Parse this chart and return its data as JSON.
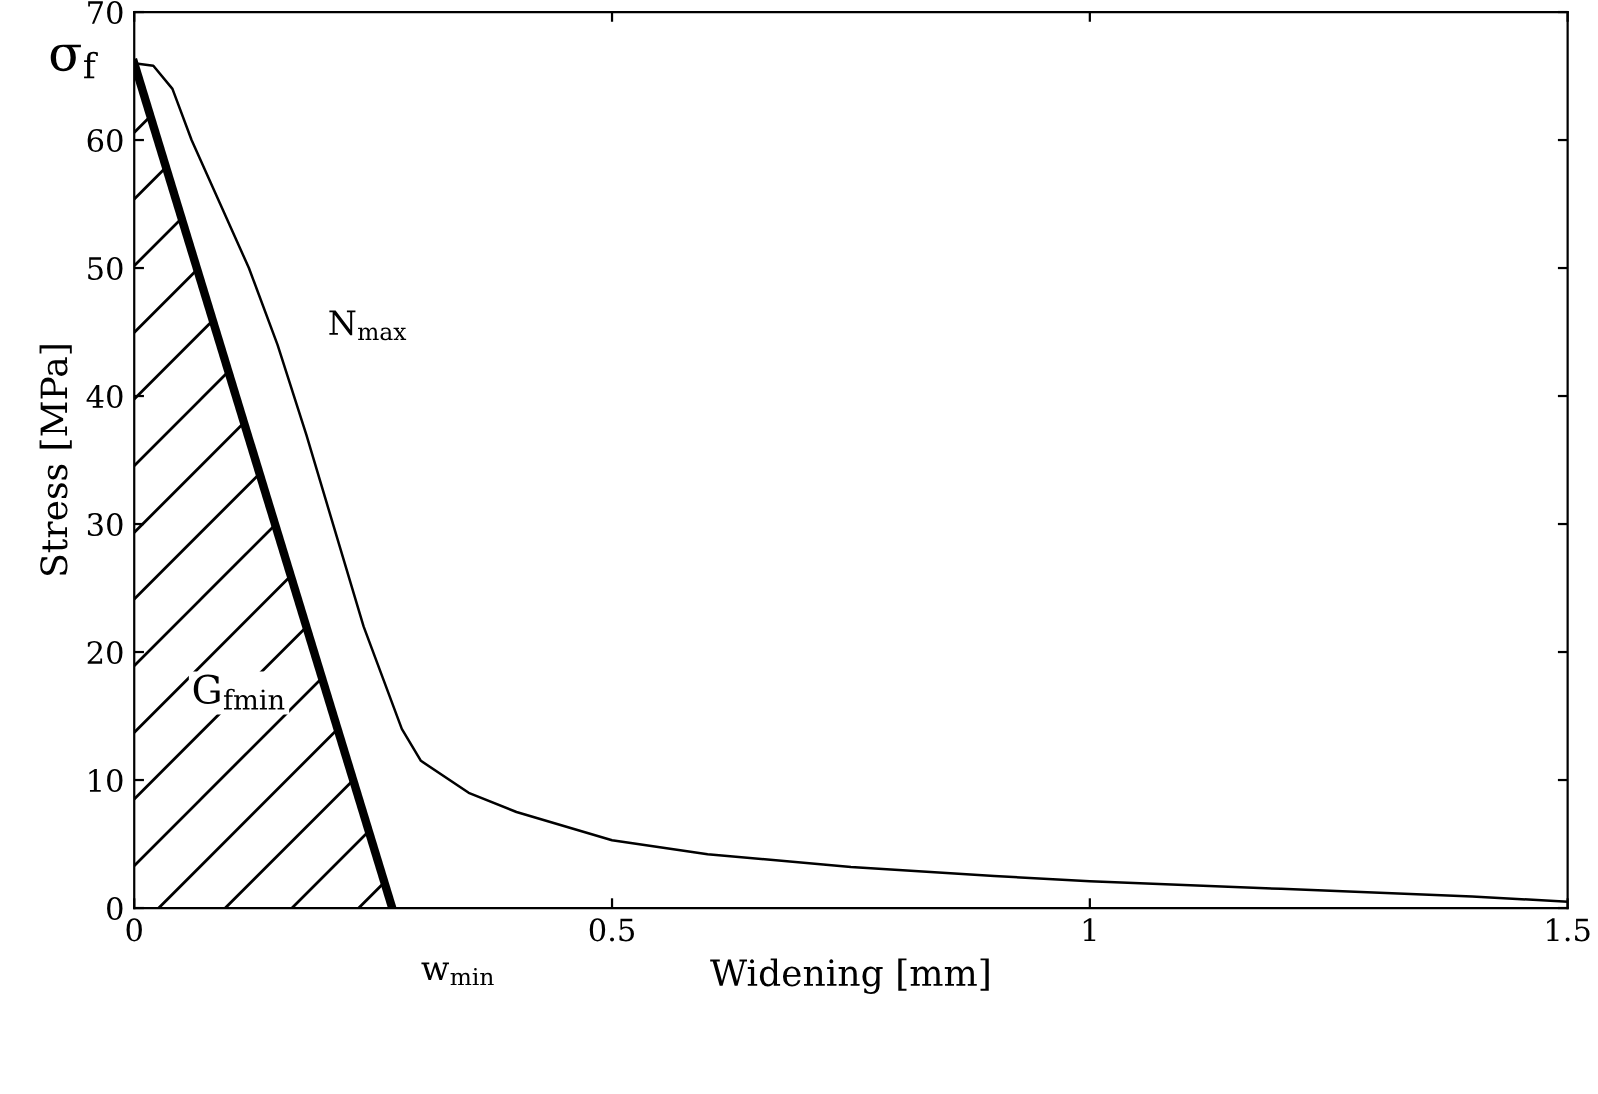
{
  "chart_data": {
    "type": "line",
    "xlabel": "Widening [mm]",
    "ylabel": "Stress [MPa]",
    "xlim": [
      0,
      1.5
    ],
    "ylim": [
      0,
      70
    ],
    "xticks": [
      0,
      0.5,
      1,
      1.5
    ],
    "yticks": [
      0,
      10,
      20,
      30,
      40,
      50,
      60,
      70
    ],
    "grid": false,
    "legend": false,
    "marker": "none",
    "line_style": "solid",
    "series": [
      {
        "color": "#000000",
        "x": [
          0,
          0.02,
          0.04,
          0.06,
          0.09,
          0.12,
          0.15,
          0.18,
          0.2,
          0.22,
          0.24,
          0.26,
          0.28,
          0.3,
          0.35,
          0.4,
          0.5,
          0.6,
          0.75,
          0.9,
          1.0,
          1.2,
          1.4,
          1.5
        ],
        "values": [
          66,
          65.8,
          64,
          60,
          55,
          50,
          44,
          37,
          32,
          27,
          22,
          18,
          14,
          11.5,
          9,
          7.5,
          5.3,
          4.2,
          3.2,
          2.5,
          2.1,
          1.5,
          0.9,
          0.5
        ]
      },
      {
        "color": "#000000",
        "x": [
          0,
          0.27
        ],
        "values": [
          66,
          0
        ]
      }
    ],
    "annotations": [
      "σ$_{f}$",
      "N$_{max}$",
      "G$_{fmin}$",
      "w$_{min}$"
    ]
  }
}
